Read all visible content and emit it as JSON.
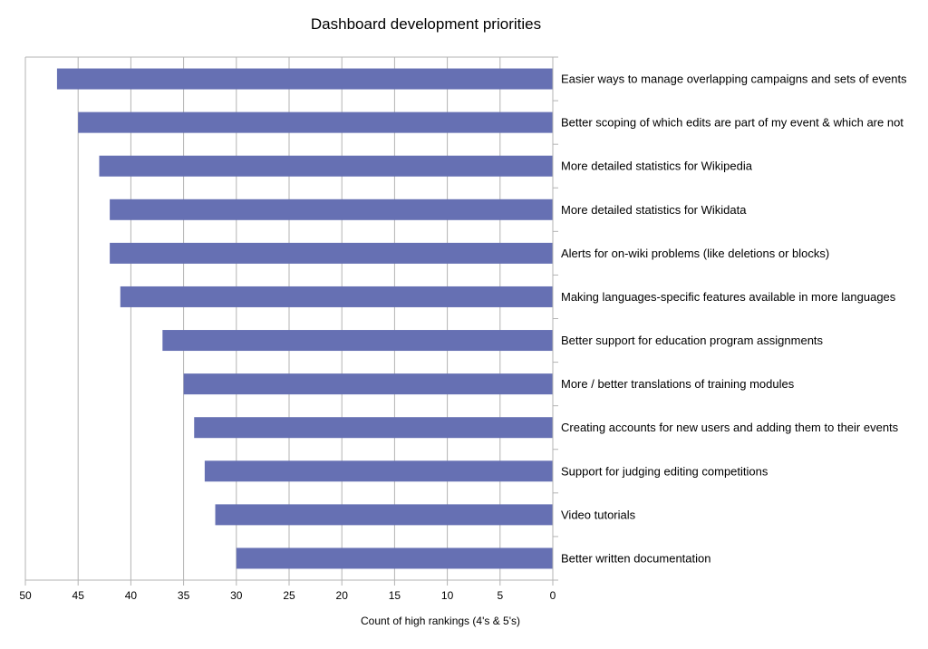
{
  "chart_data": {
    "type": "bar",
    "orientation": "horizontal",
    "title": "Dashboard development priorities",
    "xlabel": "Count of high rankings (4's & 5's)",
    "ylabel": "",
    "x_reversed": true,
    "xlim": [
      0,
      50
    ],
    "xticks": [
      0,
      5,
      10,
      15,
      20,
      25,
      30,
      35,
      40,
      45,
      50
    ],
    "grid": "vertical",
    "bar_color": "#6670b3",
    "categories": [
      "Easier ways to manage overlapping campaigns and sets of events",
      "Better scoping of which edits are part of my event & which are not",
      "More detailed statistics for Wikipedia",
      "More detailed statistics for Wikidata",
      "Alerts for on-wiki problems (like deletions or blocks)",
      "Making languages-specific features available in more languages",
      "Better support for education program assignments",
      "More / better translations of training modules",
      "Creating accounts for new users and adding them to their events",
      "Support for judging editing competitions",
      "Video tutorials",
      "Better written documentation"
    ],
    "values": [
      47,
      45,
      43,
      42,
      42,
      41,
      37,
      35,
      34,
      33,
      32,
      30
    ]
  }
}
